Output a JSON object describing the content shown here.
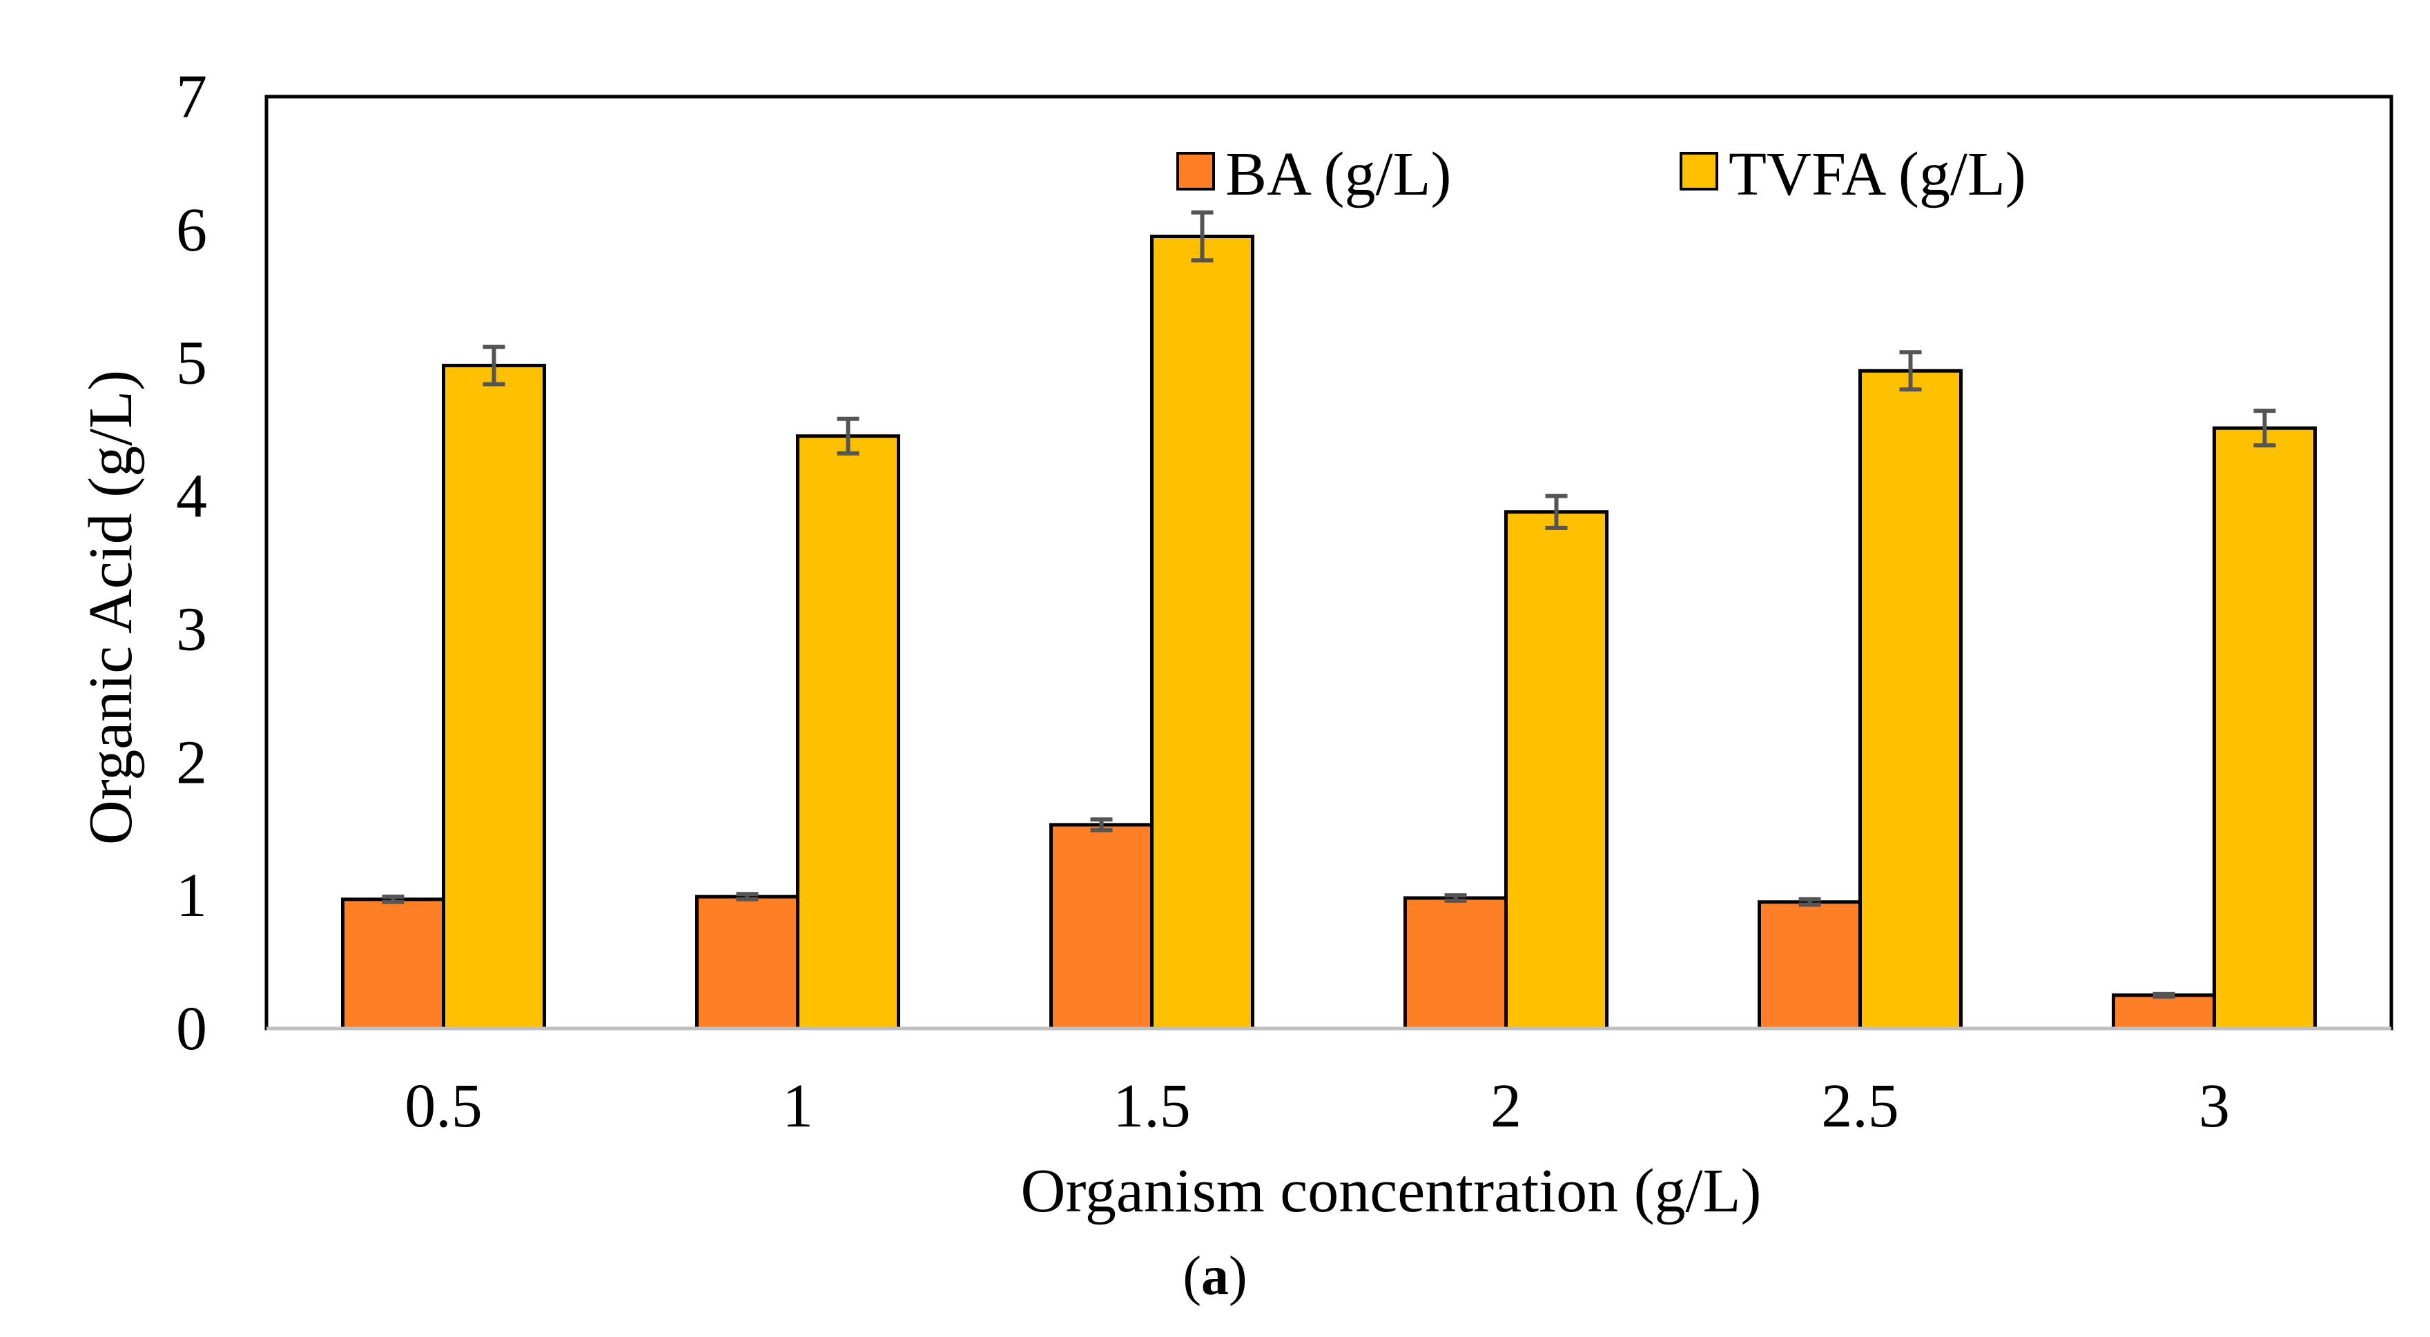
{
  "chart_data": {
    "type": "bar",
    "title": "",
    "xlabel": "Organism concentration (g/L)",
    "ylabel": "Organic Acid (g/L)",
    "caption_open": "(",
    "caption_letter": "a",
    "caption_close": ")",
    "categories": [
      "0.5",
      "1",
      "1.5",
      "2",
      "2.5",
      "3"
    ],
    "ylim": [
      0,
      7
    ],
    "yticks": [
      "0",
      "1",
      "2",
      "3",
      "4",
      "5",
      "6",
      "7"
    ],
    "grid": false,
    "legend_position": "top-right",
    "series": [
      {
        "name": "BA (g/L)",
        "color": "#FF7F27",
        "values": [
          0.97,
          0.99,
          1.53,
          0.98,
          0.95,
          0.25
        ],
        "errors": [
          0.02,
          0.02,
          0.04,
          0.02,
          0.02,
          0.01
        ]
      },
      {
        "name": "TVFA (g/L)",
        "color": "#FFC000",
        "values": [
          4.98,
          4.45,
          5.95,
          3.88,
          4.94,
          4.51
        ],
        "errors": [
          0.14,
          0.13,
          0.18,
          0.12,
          0.14,
          0.13
        ]
      }
    ],
    "errorbar_color": "#555555",
    "axis_color": "#000000"
  }
}
